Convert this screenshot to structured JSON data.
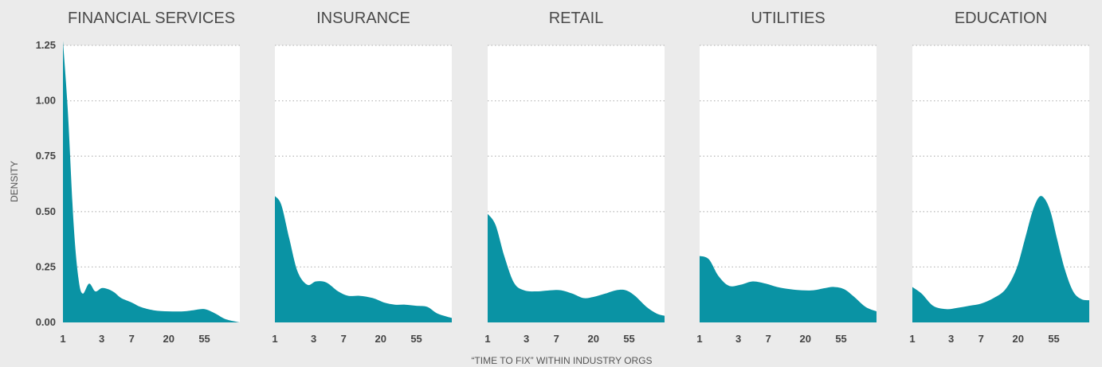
{
  "chart_data": {
    "type": "area",
    "ylabel": "DENSITY",
    "xlabel": "“TIME TO FIX” WITHIN INDUSTRY ORGS",
    "ylim": [
      0,
      1.25
    ],
    "y_ticks": [
      "0.00",
      "0.25",
      "0.50",
      "0.75",
      "1.00",
      "1.25"
    ],
    "y_tick_values": [
      0,
      0.25,
      0.5,
      0.75,
      1.0,
      1.25
    ],
    "x_scale": "log",
    "x_ticks": [
      "1",
      "3",
      "7",
      "20",
      "55"
    ],
    "x_tick_values": [
      1,
      3,
      7,
      20,
      55
    ],
    "xlim": [
      1,
      150
    ],
    "grid": "horizontal dotted",
    "fill_color": "#0a93a4",
    "panel_background": "#ffffff",
    "figure_background": "#ebebeb",
    "panels": [
      {
        "title": "FINANCIAL SERVICES",
        "x": [
          1,
          1.15,
          1.35,
          1.55,
          1.75,
          2.1,
          2.5,
          3.0,
          3.6,
          4.3,
          5.2,
          7,
          9,
          13,
          20,
          30,
          40,
          55,
          75,
          100,
          150
        ],
        "y": [
          1.27,
          0.95,
          0.45,
          0.2,
          0.13,
          0.175,
          0.14,
          0.155,
          0.15,
          0.135,
          0.11,
          0.09,
          0.07,
          0.055,
          0.05,
          0.05,
          0.055,
          0.06,
          0.04,
          0.015,
          0
        ]
      },
      {
        "title": "INSURANCE",
        "x": [
          1,
          1.2,
          1.5,
          1.9,
          2.5,
          3.2,
          4.3,
          6,
          8,
          11,
          16,
          22,
          30,
          40,
          55,
          75,
          100,
          150
        ],
        "y": [
          0.57,
          0.53,
          0.38,
          0.23,
          0.17,
          0.185,
          0.18,
          0.14,
          0.12,
          0.12,
          0.11,
          0.09,
          0.08,
          0.08,
          0.075,
          0.07,
          0.04,
          0.02
        ]
      },
      {
        "title": "RETAIL",
        "x": [
          1,
          1.25,
          1.6,
          2.1,
          2.8,
          4,
          6,
          8,
          11,
          15,
          20,
          28,
          38,
          50,
          65,
          90,
          120,
          150
        ],
        "y": [
          0.49,
          0.44,
          0.3,
          0.18,
          0.145,
          0.14,
          0.145,
          0.145,
          0.13,
          0.11,
          0.115,
          0.13,
          0.145,
          0.145,
          0.12,
          0.07,
          0.04,
          0.03
        ]
      },
      {
        "title": "UTILITIES",
        "x": [
          1,
          1.3,
          1.7,
          2.3,
          3.2,
          4.5,
          6.5,
          9,
          13,
          18,
          25,
          35,
          45,
          60,
          80,
          110,
          150
        ],
        "y": [
          0.3,
          0.285,
          0.21,
          0.165,
          0.17,
          0.185,
          0.175,
          0.16,
          0.15,
          0.145,
          0.145,
          0.155,
          0.16,
          0.15,
          0.115,
          0.07,
          0.05
        ]
      },
      {
        "title": "EDUCATION",
        "x": [
          1,
          1.3,
          1.8,
          2.6,
          3.5,
          5,
          7,
          10,
          14,
          19,
          24,
          30,
          36,
          42,
          50,
          60,
          75,
          95,
          120,
          150
        ],
        "y": [
          0.16,
          0.13,
          0.075,
          0.06,
          0.065,
          0.075,
          0.085,
          0.11,
          0.15,
          0.24,
          0.37,
          0.5,
          0.565,
          0.56,
          0.5,
          0.38,
          0.24,
          0.14,
          0.105,
          0.1
        ]
      }
    ]
  }
}
